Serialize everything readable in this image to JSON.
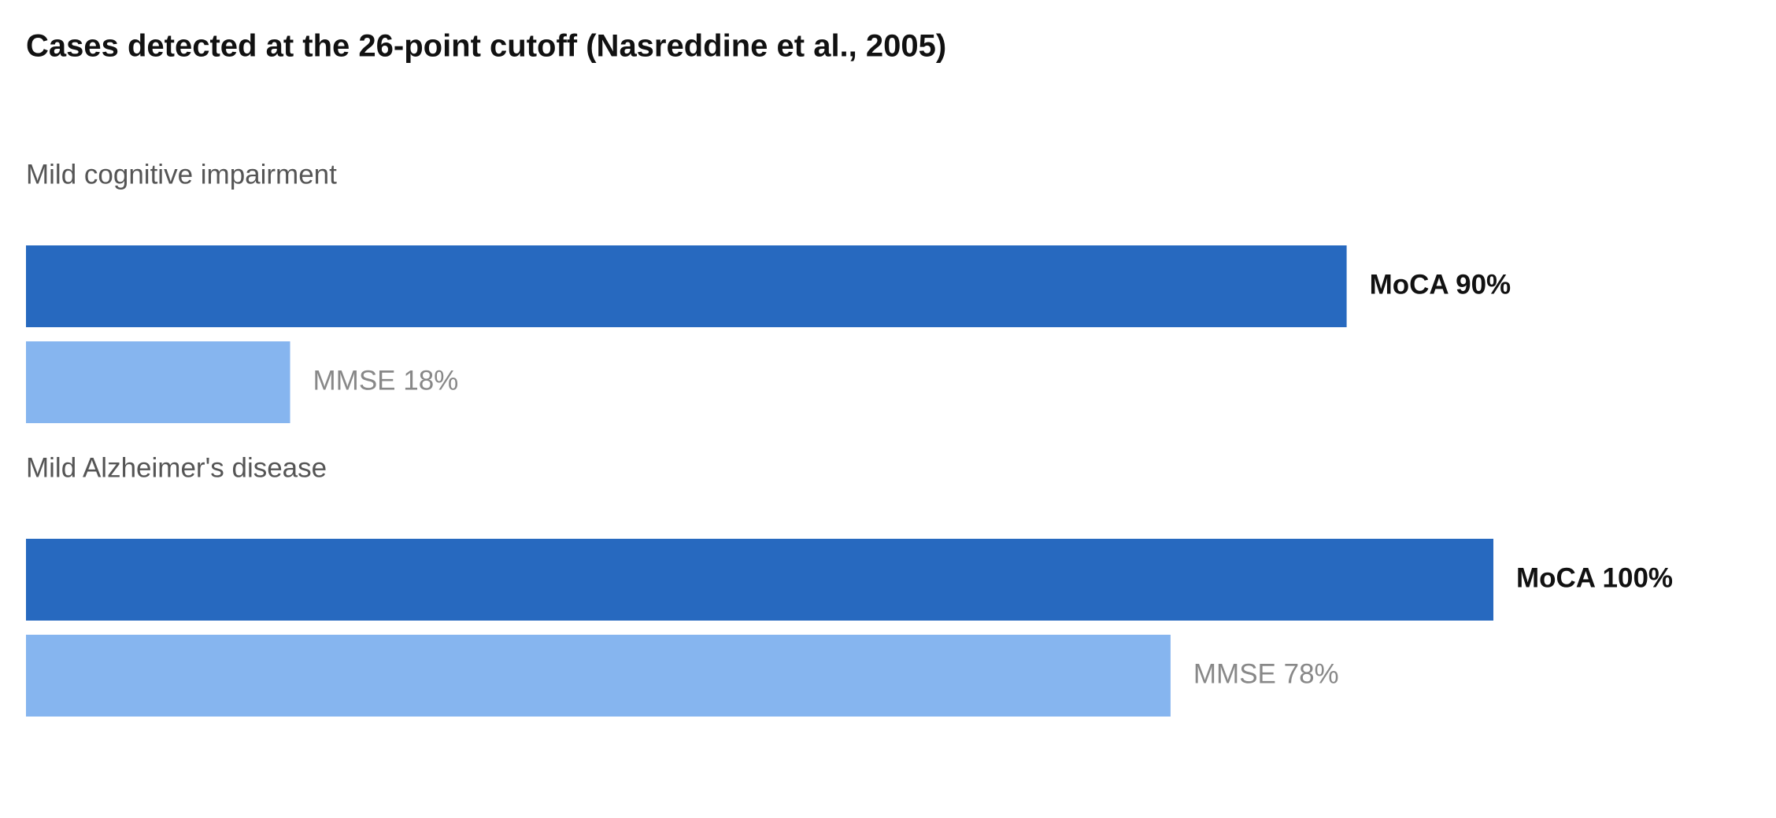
{
  "chart_data": {
    "type": "hbar",
    "title": "Cases detected at the 26-point cutoff (Nasreddine et al., 2005)",
    "categories": [
      "Mild cognitive impairment",
      "Mild Alzheimer's disease"
    ],
    "series": [
      {
        "name": "MoCA",
        "color": "#2769bf",
        "values": [
          90,
          100
        ],
        "value_labels": [
          "MoCA 90%",
          "MoCA 100%"
        ]
      },
      {
        "name": "MMSE",
        "color": "#86b5ef",
        "values": [
          18,
          78
        ],
        "value_labels": [
          "MMSE 18%",
          "MMSE 78%"
        ]
      }
    ],
    "xlim": [
      0,
      100
    ]
  }
}
